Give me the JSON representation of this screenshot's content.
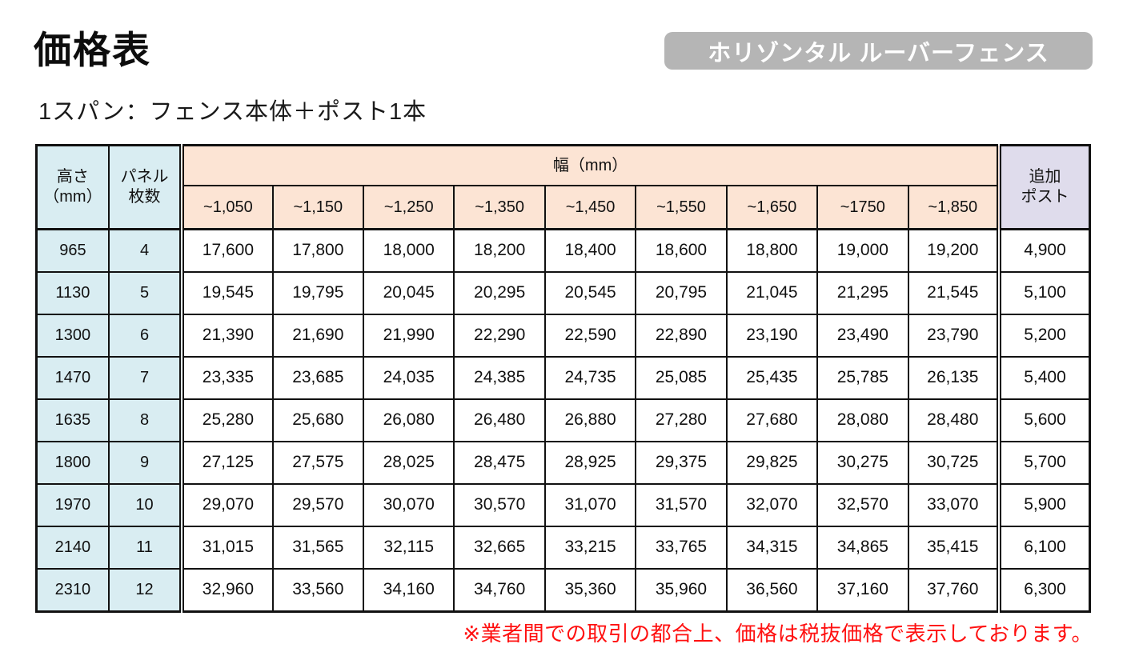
{
  "page": {
    "title": "価格表",
    "badge": "ホリゾンタル ルーバーフェンス",
    "subtitle": "1スパン：フェンス本体＋ポスト1本",
    "note": "※業者間での取引の都合上、価格は税抜価格で表示しております。"
  },
  "colors": {
    "header_blue": "#d9edf2",
    "header_peach": "#fce4d4",
    "header_lavender": "#dfdcec",
    "badge_gray": "#b5b5b5",
    "note_red": "#ff1010",
    "border_black": "#111111"
  },
  "table": {
    "headers": {
      "height": "高さ\n（mm）",
      "panels": "パネル\n枚数",
      "width_band": "幅（mm）",
      "width_cols": [
        "~1,050",
        "~1,150",
        "~1,250",
        "~1,350",
        "~1,450",
        "~1,550",
        "~1,650",
        "~1750",
        "~1,850"
      ],
      "extra_post": "追加\nポスト"
    },
    "rows": [
      {
        "height": "965",
        "panels": "4",
        "prices": [
          "17,600",
          "17,800",
          "18,000",
          "18,200",
          "18,400",
          "18,600",
          "18,800",
          "19,000",
          "19,200"
        ],
        "post": "4,900"
      },
      {
        "height": "1130",
        "panels": "5",
        "prices": [
          "19,545",
          "19,795",
          "20,045",
          "20,295",
          "20,545",
          "20,795",
          "21,045",
          "21,295",
          "21,545"
        ],
        "post": "5,100"
      },
      {
        "height": "1300",
        "panels": "6",
        "prices": [
          "21,390",
          "21,690",
          "21,990",
          "22,290",
          "22,590",
          "22,890",
          "23,190",
          "23,490",
          "23,790"
        ],
        "post": "5,200"
      },
      {
        "height": "1470",
        "panels": "7",
        "prices": [
          "23,335",
          "23,685",
          "24,035",
          "24,385",
          "24,735",
          "25,085",
          "25,435",
          "25,785",
          "26,135"
        ],
        "post": "5,400"
      },
      {
        "height": "1635",
        "panels": "8",
        "prices": [
          "25,280",
          "25,680",
          "26,080",
          "26,480",
          "26,880",
          "27,280",
          "27,680",
          "28,080",
          "28,480"
        ],
        "post": "5,600"
      },
      {
        "height": "1800",
        "panels": "9",
        "prices": [
          "27,125",
          "27,575",
          "28,025",
          "28,475",
          "28,925",
          "29,375",
          "29,825",
          "30,275",
          "30,725"
        ],
        "post": "5,700"
      },
      {
        "height": "1970",
        "panels": "10",
        "prices": [
          "29,070",
          "29,570",
          "30,070",
          "30,570",
          "31,070",
          "31,570",
          "32,070",
          "32,570",
          "33,070"
        ],
        "post": "5,900"
      },
      {
        "height": "2140",
        "panels": "11",
        "prices": [
          "31,015",
          "31,565",
          "32,115",
          "32,665",
          "33,215",
          "33,765",
          "34,315",
          "34,865",
          "35,415"
        ],
        "post": "6,100"
      },
      {
        "height": "2310",
        "panels": "12",
        "prices": [
          "32,960",
          "33,560",
          "34,160",
          "34,760",
          "35,360",
          "35,960",
          "36,560",
          "37,160",
          "37,760"
        ],
        "post": "6,300"
      }
    ]
  }
}
